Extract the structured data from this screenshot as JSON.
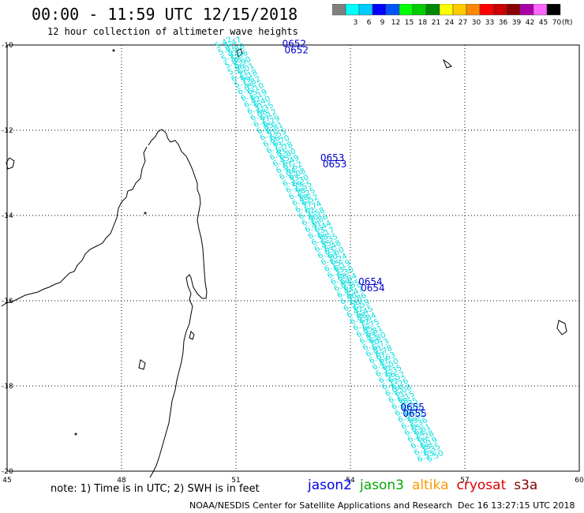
{
  "header": {
    "title": "00:00 - 11:59 UTC 12/15/2018",
    "subtitle": "12 hour collection of altimeter wave heights"
  },
  "scale": {
    "unit": "(ft)",
    "bins": [
      {
        "label": "",
        "color": "#808080"
      },
      {
        "label": "3",
        "color": "#00ffff"
      },
      {
        "label": "6",
        "color": "#00ccff"
      },
      {
        "label": "9",
        "color": "#0000ff"
      },
      {
        "label": "12",
        "color": "#0055ff"
      },
      {
        "label": "15",
        "color": "#00ff00"
      },
      {
        "label": "18",
        "color": "#00cc00"
      },
      {
        "label": "21",
        "color": "#008800"
      },
      {
        "label": "24",
        "color": "#ffff00"
      },
      {
        "label": "27",
        "color": "#ffcc00"
      },
      {
        "label": "30",
        "color": "#ff8800"
      },
      {
        "label": "33",
        "color": "#ff0000"
      },
      {
        "label": "36",
        "color": "#cc0000"
      },
      {
        "label": "39",
        "color": "#880000"
      },
      {
        "label": "42",
        "color": "#aa00aa"
      },
      {
        "label": "45",
        "color": "#ff66ff"
      },
      {
        "label": "70",
        "color": "#000000"
      }
    ]
  },
  "map": {
    "lon_range": [
      45,
      60
    ],
    "lat_range": [
      -20,
      -10
    ],
    "lon_ticks": [
      "45",
      "48",
      "51",
      "54",
      "57",
      "60"
    ],
    "lat_ticks": [
      "-10",
      "-12",
      "-14",
      "-16",
      "-18",
      "-20"
    ],
    "grid": true,
    "track_color": "#00dddd",
    "time_label_color": "#0000cc",
    "time_labels": [
      {
        "text": "0652",
        "lon": 52.5,
        "lat": -10.12
      },
      {
        "text": "0653",
        "lon": 53.5,
        "lat": -12.8
      },
      {
        "text": "0654",
        "lon": 54.5,
        "lat": -15.7
      },
      {
        "text": "0655",
        "lon": 55.6,
        "lat": -18.65
      }
    ],
    "passes": [
      {
        "start": {
          "lon": 50.7,
          "lat": -10.0
        },
        "end": {
          "lon": 56.0,
          "lat": -19.7
        },
        "values": [
          "5.42",
          "5.81",
          "5.92",
          "5.88",
          "5.96",
          "6.21",
          "5.79",
          "6.05",
          "6.15",
          "6.42",
          "6.31",
          "6.08",
          "6.27",
          "6.85",
          "6.51",
          "6.66",
          "6.73",
          "6.83",
          "6.45",
          "6.67",
          "6.04",
          "6.33",
          "6.59",
          "6.28",
          "6.48",
          "6.77",
          "6.52",
          "6.90",
          "6.41",
          "6.13",
          "6.38",
          "6.45",
          "6.63",
          "6.20",
          "6.15",
          "6.33",
          "6.68",
          "6.89",
          "6.44",
          "6.90",
          "6.56",
          "6.42",
          "6.88",
          "6.72",
          "6.85",
          "6.83",
          "6.70",
          "6.81",
          "6.67",
          "6.47",
          "6.32",
          "6.56",
          "6.22",
          "6.04",
          "6.11",
          "6.38",
          "6.42",
          "6.09",
          "6.39",
          "6.65",
          "6.24",
          "6.16",
          "6.38",
          "6.53"
        ]
      },
      {
        "start": {
          "lon": 50.95,
          "lat": -10.0
        },
        "end": {
          "lon": 56.25,
          "lat": -19.7
        },
        "values": [
          "5.47",
          "5.88",
          "5.96",
          "5.90",
          "6.01",
          "6.18",
          "5.82",
          "6.10",
          "6.19",
          "6.40",
          "6.35",
          "6.12",
          "6.29",
          "6.81",
          "6.55",
          "6.70",
          "6.78",
          "6.80",
          "6.49",
          "6.62",
          "6.08",
          "6.30",
          "6.55",
          "6.25",
          "6.52",
          "6.74",
          "6.58",
          "6.86",
          "6.44",
          "6.17",
          "6.35",
          "6.48",
          "6.60",
          "6.24",
          "6.19",
          "6.30",
          "6.64",
          "6.85",
          "6.47",
          "6.86",
          "6.59",
          "6.45",
          "6.84",
          "6.75",
          "6.81",
          "6.80",
          "6.73",
          "6.78",
          "6.63",
          "6.50",
          "6.35",
          "6.52",
          "6.26",
          "6.08",
          "6.15",
          "6.35",
          "6.45",
          "6.12",
          "6.36",
          "6.61",
          "6.28",
          "6.19",
          "6.35",
          "6.50"
        ]
      }
    ]
  },
  "footer": {
    "note": "note: 1) Time is in UTC; 2) SWH is in feet",
    "satellites": [
      {
        "name": "jason2",
        "color": "#0000ee"
      },
      {
        "name": "jason3",
        "color": "#00aa00"
      },
      {
        "name": "altika",
        "color": "#ff9900"
      },
      {
        "name": "cryosat",
        "color": "#dd0000"
      },
      {
        "name": "s3a",
        "color": "#880000"
      }
    ],
    "credit": "NOAA/NESDIS Center for Satellite Applications and Research",
    "timestamp": "Dec 16 13:27:15 UTC 2018"
  }
}
